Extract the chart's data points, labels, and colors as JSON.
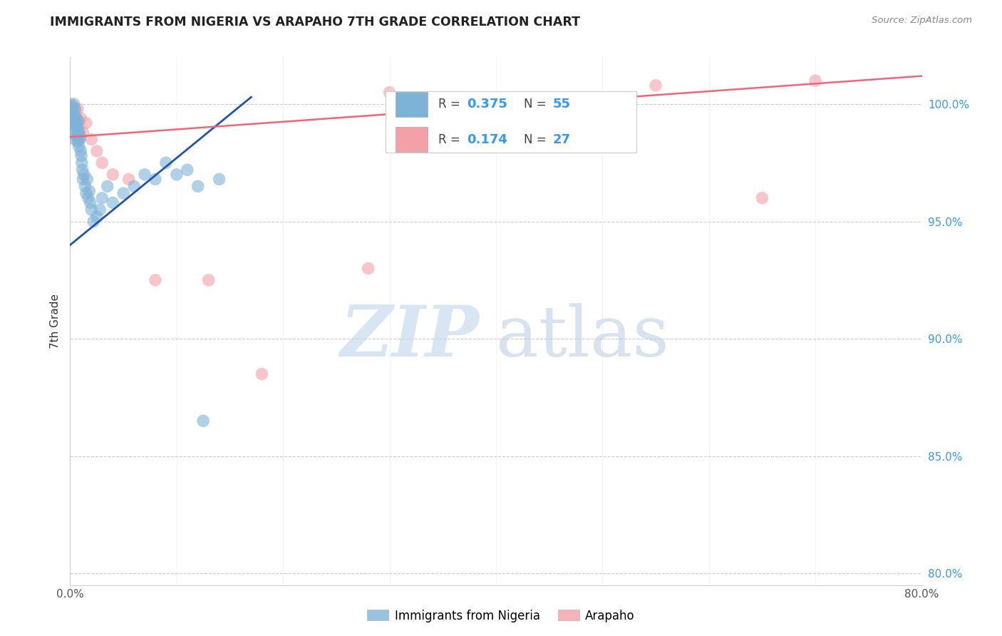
{
  "title": "IMMIGRANTS FROM NIGERIA VS ARAPAHO 7TH GRADE CORRELATION CHART",
  "source": "Source: ZipAtlas.com",
  "ylabel": "7th Grade",
  "xlim": [
    0.0,
    80.0
  ],
  "ylim": [
    79.5,
    102.0
  ],
  "x_ticks": [
    0,
    10,
    20,
    30,
    40,
    50,
    60,
    70,
    80
  ],
  "x_tick_labels": [
    "0.0%",
    "",
    "",
    "",
    "",
    "",
    "",
    "",
    "80.0%"
  ],
  "y_ticks": [
    80,
    85,
    90,
    95,
    100
  ],
  "y_tick_labels_right": [
    "80.0%",
    "85.0%",
    "90.0%",
    "95.0%",
    "100.0%"
  ],
  "blue_color": "#7EB3D8",
  "pink_color": "#F4A0A8",
  "trendline_blue": "#2255AA",
  "trendline_pink": "#EE6677",
  "legend_r_blue": "0.375",
  "legend_n_blue": "55",
  "legend_r_pink": "0.174",
  "legend_n_pink": "27",
  "blue_x": [
    0.1,
    0.15,
    0.2,
    0.25,
    0.3,
    0.35,
    0.4,
    0.45,
    0.5,
    0.55,
    0.6,
    0.65,
    0.7,
    0.75,
    0.8,
    0.85,
    0.9,
    0.95,
    1.0,
    1.05,
    1.1,
    1.15,
    1.2,
    1.3,
    1.4,
    1.5,
    1.6,
    1.7,
    1.8,
    1.9,
    2.0,
    2.2,
    2.5,
    2.8,
    3.0,
    3.5,
    4.0,
    5.0,
    6.0,
    7.0,
    8.0,
    9.0,
    10.0,
    11.0,
    12.0,
    14.0,
    0.12,
    0.22,
    0.32,
    0.42,
    0.52,
    0.62,
    0.72,
    0.82,
    12.5
  ],
  "blue_y": [
    99.8,
    99.6,
    99.9,
    99.7,
    99.5,
    100.0,
    99.3,
    99.8,
    99.2,
    99.0,
    99.4,
    99.1,
    98.9,
    99.3,
    98.7,
    98.8,
    98.5,
    98.6,
    98.0,
    97.8,
    97.5,
    97.2,
    96.8,
    97.0,
    96.5,
    96.2,
    96.8,
    96.0,
    96.3,
    95.8,
    95.5,
    95.0,
    95.2,
    95.5,
    96.0,
    96.5,
    95.8,
    96.2,
    96.5,
    97.0,
    96.8,
    97.5,
    97.0,
    97.2,
    96.5,
    96.8,
    99.0,
    99.2,
    98.8,
    98.5,
    99.1,
    98.6,
    98.4,
    98.2,
    86.5
  ],
  "pink_x": [
    0.1,
    0.2,
    0.3,
    0.4,
    0.5,
    0.6,
    0.7,
    0.8,
    1.0,
    1.2,
    1.5,
    2.0,
    2.5,
    3.0,
    4.0,
    5.5,
    8.0,
    13.0,
    18.0,
    28.0,
    30.0,
    55.0,
    65.0,
    70.0,
    0.15,
    0.25,
    0.45
  ],
  "pink_y": [
    100.0,
    99.8,
    99.6,
    99.5,
    99.7,
    99.3,
    99.8,
    99.1,
    99.4,
    98.8,
    99.2,
    98.5,
    98.0,
    97.5,
    97.0,
    96.8,
    92.5,
    92.5,
    88.5,
    93.0,
    100.5,
    100.8,
    96.0,
    101.0,
    99.9,
    99.2,
    99.5
  ],
  "blue_trend_x": [
    0.0,
    17.0
  ],
  "blue_trend_y": [
    94.0,
    100.3
  ],
  "pink_trend_x": [
    0.0,
    80.0
  ],
  "pink_trend_y": [
    98.6,
    101.2
  ],
  "watermark_zip_color": "#C8DCF0",
  "watermark_atlas_color": "#B8CCE0"
}
